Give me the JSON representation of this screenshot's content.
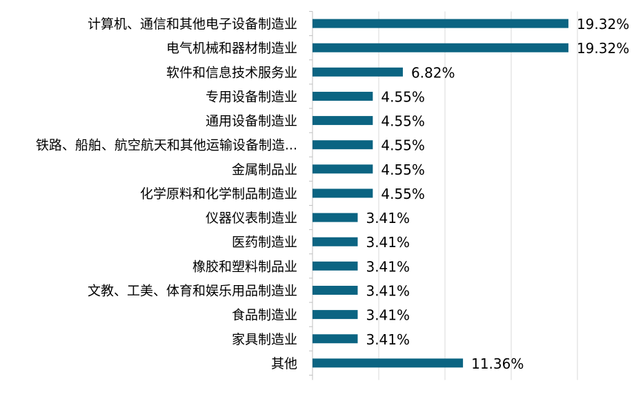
{
  "chart_data": {
    "type": "bar",
    "orientation": "horizontal",
    "title": "",
    "xlabel": "",
    "ylabel": "",
    "xlim": [
      0,
      20
    ],
    "grid": true,
    "bar_color": "#0b6482",
    "categories": [
      "计算机、通信和其他电子设备制造业",
      "电气机械和器材制造业",
      "软件和信息技术服务业",
      "专用设备制造业",
      "通用设备制造业",
      "铁路、船舶、航空航天和其他运输设备制造...",
      "金属制品业",
      "化学原料和化学制品制造业",
      "仪器仪表制造业",
      "医药制造业",
      "橡胶和塑料制品业",
      "文教、工美、体育和娱乐用品制造业",
      "食品制造业",
      "家具制造业",
      "其他"
    ],
    "values": [
      19.32,
      19.32,
      6.82,
      4.55,
      4.55,
      4.55,
      4.55,
      4.55,
      3.41,
      3.41,
      3.41,
      3.41,
      3.41,
      3.41,
      11.36
    ],
    "data_labels": [
      "19.32%",
      "19.32%",
      "6.82%",
      "4.55%",
      "4.55%",
      "4.55%",
      "4.55%",
      "4.55%",
      "3.41%",
      "3.41%",
      "3.41%",
      "3.41%",
      "3.41%",
      "3.41%",
      "11.36%"
    ]
  }
}
